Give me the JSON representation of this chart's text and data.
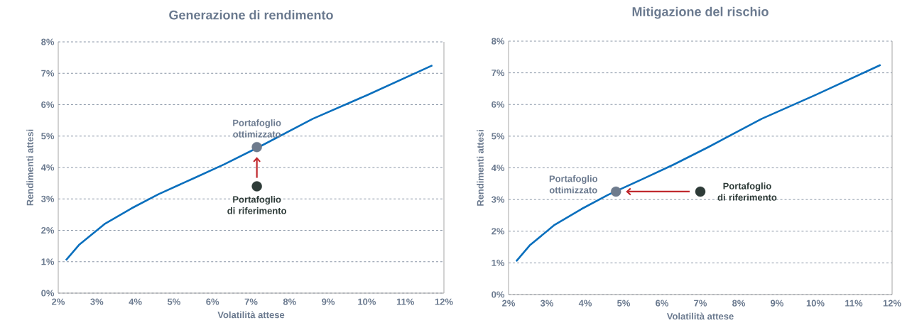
{
  "chart_data": [
    {
      "type": "line",
      "title": "Generazione di rendimento",
      "xlabel": "Volatilità attese",
      "ylabel": "Rendimenti attesi",
      "xlim": [
        2,
        12
      ],
      "ylim": [
        0,
        8
      ],
      "xticks": [
        {
          "value": 2,
          "label": "2%"
        },
        {
          "value": 3,
          "label": "3%"
        },
        {
          "value": 4,
          "label": "4%"
        },
        {
          "value": 5,
          "label": "5%"
        },
        {
          "value": 6,
          "label": "6%"
        },
        {
          "value": 7,
          "label": "7%"
        },
        {
          "value": 8,
          "label": "8%"
        },
        {
          "value": 9,
          "label": "9%"
        },
        {
          "value": 10,
          "label": "10%"
        },
        {
          "value": 11,
          "label": "11%"
        },
        {
          "value": 12,
          "label": "12%"
        }
      ],
      "yticks": [
        {
          "value": 0,
          "label": "0%"
        },
        {
          "value": 1,
          "label": "1%"
        },
        {
          "value": 2,
          "label": "2%"
        },
        {
          "value": 3,
          "label": "3%"
        },
        {
          "value": 4,
          "label": "4%"
        },
        {
          "value": 5,
          "label": "5%"
        },
        {
          "value": 6,
          "label": "6%"
        },
        {
          "value": 7,
          "label": "7%"
        },
        {
          "value": 8,
          "label": "8%"
        }
      ],
      "grid": "y",
      "series": [
        {
          "color": "#0a6fbd",
          "x": [
            2.2,
            2.55,
            3.2,
            3.9,
            4.6,
            5.5,
            6.3,
            7.2,
            8.6,
            10,
            11.7
          ],
          "values": [
            1.05,
            1.55,
            2.2,
            2.7,
            3.15,
            3.65,
            4.1,
            4.65,
            5.55,
            6.3,
            7.25
          ]
        },
        {
          "type": "scatter",
          "name": "Portafoglio ottimizzato",
          "color": "#6e7b8d",
          "x": [
            7.15
          ],
          "values": [
            4.65
          ]
        },
        {
          "type": "scatter",
          "name": "Portafoglio di riferimento",
          "color": "#2e3b38",
          "x": [
            7.15
          ],
          "values": [
            3.4
          ]
        }
      ]
    },
    {
      "type": "line",
      "title": "Mitigazione del rischio",
      "xlabel": "Volatilità attese",
      "ylabel": "Rendimenti attesi",
      "xlim": [
        2,
        12
      ],
      "ylim": [
        0,
        8
      ],
      "xticks": [
        {
          "value": 2,
          "label": "2%"
        },
        {
          "value": 3,
          "label": "3%"
        },
        {
          "value": 4,
          "label": "4%"
        },
        {
          "value": 5,
          "label": "5%"
        },
        {
          "value": 6,
          "label": "6%"
        },
        {
          "value": 7,
          "label": "7%"
        },
        {
          "value": 8,
          "label": "8%"
        },
        {
          "value": 9,
          "label": "9%"
        },
        {
          "value": 10,
          "label": "10%"
        },
        {
          "value": 11,
          "label": "11%"
        },
        {
          "value": 12,
          "label": "12%"
        }
      ],
      "yticks": [
        {
          "value": 0,
          "label": "0%"
        },
        {
          "value": 1,
          "label": "1%"
        },
        {
          "value": 2,
          "label": "2%"
        },
        {
          "value": 3,
          "label": "3%"
        },
        {
          "value": 4,
          "label": "4%"
        },
        {
          "value": 5,
          "label": "5%"
        },
        {
          "value": 6,
          "label": "6%"
        },
        {
          "value": 7,
          "label": "7%"
        },
        {
          "value": 8,
          "label": "8%"
        }
      ],
      "grid": "y",
      "series": [
        {
          "color": "#0a6fbd",
          "x": [
            2.2,
            2.55,
            3.2,
            3.9,
            4.6,
            5.5,
            6.3,
            7.2,
            8.6,
            10,
            11.7
          ],
          "values": [
            1.05,
            1.55,
            2.2,
            2.7,
            3.15,
            3.65,
            4.1,
            4.65,
            5.55,
            6.3,
            7.25
          ]
        },
        {
          "type": "scatter",
          "name": "Portafoglio ottimizzato",
          "color": "#6e7b8d",
          "x": [
            4.8
          ],
          "values": [
            3.25
          ]
        },
        {
          "type": "scatter",
          "name": "Portafoglio di riferimento",
          "color": "#2e3b38",
          "x": [
            7.0
          ],
          "values": [
            3.25
          ]
        }
      ]
    }
  ]
}
